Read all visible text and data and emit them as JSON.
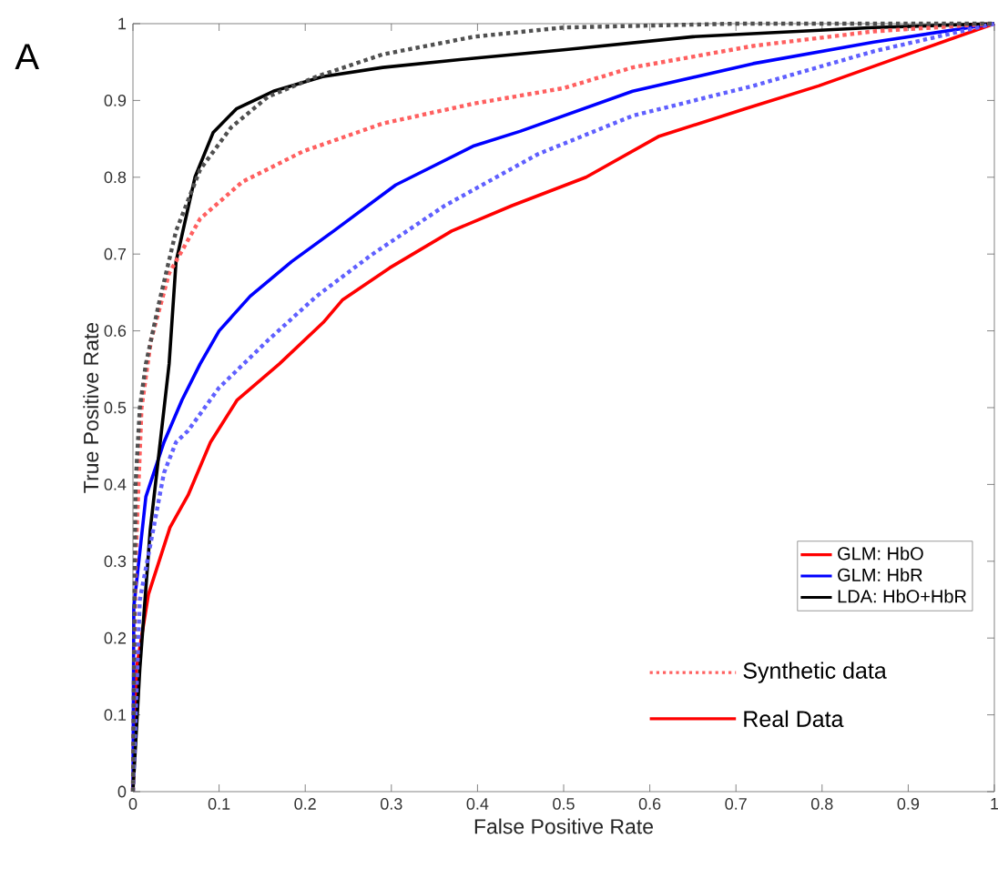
{
  "chart_data": {
    "type": "line",
    "title": "A",
    "xlabel": "False Positive Rate",
    "ylabel": "True Positive Rate",
    "xlim": [
      0,
      1
    ],
    "ylim": [
      0,
      1
    ],
    "xticks": [
      0,
      0.1,
      0.2,
      0.3,
      0.4,
      0.5,
      0.6,
      0.7,
      0.8,
      0.9,
      1
    ],
    "yticks": [
      0,
      0.1,
      0.2,
      0.3,
      0.4,
      0.5,
      0.6,
      0.7,
      0.8,
      0.9,
      1
    ],
    "grid": false,
    "legend": "right",
    "marker": "none",
    "annotations": [
      "Synthetic data",
      "Real Data"
    ],
    "series": [
      {
        "name": "GLM: HbO",
        "color": "#ff0000",
        "line_style": "solid",
        "x": [
          0,
          0.004,
          0.018,
          0.043,
          0.064,
          0.09,
          0.121,
          0.17,
          0.221,
          0.243,
          0.298,
          0.37,
          0.44,
          0.526,
          0.61,
          0.71,
          0.796,
          0.909,
          1
        ],
        "values": [
          0,
          0.16,
          0.257,
          0.344,
          0.386,
          0.455,
          0.51,
          0.557,
          0.611,
          0.64,
          0.682,
          0.73,
          0.763,
          0.8,
          0.853,
          0.889,
          0.919,
          0.964,
          1
        ]
      },
      {
        "name": "GLM: HbR",
        "color": "#0000ff",
        "line_style": "solid",
        "x": [
          0,
          0.001,
          0.015,
          0.036,
          0.057,
          0.078,
          0.1,
          0.136,
          0.184,
          0.233,
          0.305,
          0.396,
          0.45,
          0.58,
          0.72,
          0.86,
          1
        ],
        "values": [
          0,
          0.24,
          0.384,
          0.455,
          0.51,
          0.557,
          0.6,
          0.645,
          0.69,
          0.73,
          0.79,
          0.841,
          0.86,
          0.912,
          0.948,
          0.976,
          1
        ]
      },
      {
        "name": "LDA:  HbO+HbR",
        "color": "#000000",
        "line_style": "solid",
        "x": [
          0,
          0.008,
          0.02,
          0.042,
          0.05,
          0.072,
          0.093,
          0.12,
          0.163,
          0.22,
          0.29,
          0.396,
          0.5,
          0.65,
          0.86,
          1
        ],
        "values": [
          0,
          0.16,
          0.34,
          0.557,
          0.69,
          0.8,
          0.858,
          0.889,
          0.912,
          0.931,
          0.943,
          0.955,
          0.966,
          0.983,
          0.995,
          1
        ]
      },
      {
        "color": "#ff6060",
        "line_style": "dotted",
        "x": [
          0,
          0.003,
          0.01,
          0.021,
          0.042,
          0.078,
          0.127,
          0.198,
          0.29,
          0.396,
          0.5,
          0.58,
          0.72,
          0.86,
          1
        ],
        "values": [
          0,
          0.3,
          0.5,
          0.588,
          0.675,
          0.746,
          0.794,
          0.834,
          0.87,
          0.896,
          0.916,
          0.943,
          0.971,
          0.99,
          1
        ]
      },
      {
        "color": "#6060ff",
        "line_style": "dotted",
        "x": [
          0,
          0.008,
          0.02,
          0.036,
          0.05,
          0.064,
          0.1,
          0.157,
          0.213,
          0.277,
          0.362,
          0.47,
          0.58,
          0.72,
          0.86,
          1
        ],
        "values": [
          0,
          0.25,
          0.32,
          0.415,
          0.455,
          0.47,
          0.526,
          0.588,
          0.645,
          0.699,
          0.763,
          0.83,
          0.88,
          0.919,
          0.964,
          1
        ]
      },
      {
        "color": "#505050",
        "line_style": "dotted",
        "x": [
          0,
          0.003,
          0.008,
          0.015,
          0.03,
          0.05,
          0.078,
          0.114,
          0.157,
          0.213,
          0.29,
          0.396,
          0.5,
          0.7,
          1
        ],
        "values": [
          0,
          0.4,
          0.5,
          0.557,
          0.635,
          0.73,
          0.81,
          0.865,
          0.905,
          0.931,
          0.96,
          0.983,
          0.995,
          1,
          1
        ]
      }
    ]
  }
}
